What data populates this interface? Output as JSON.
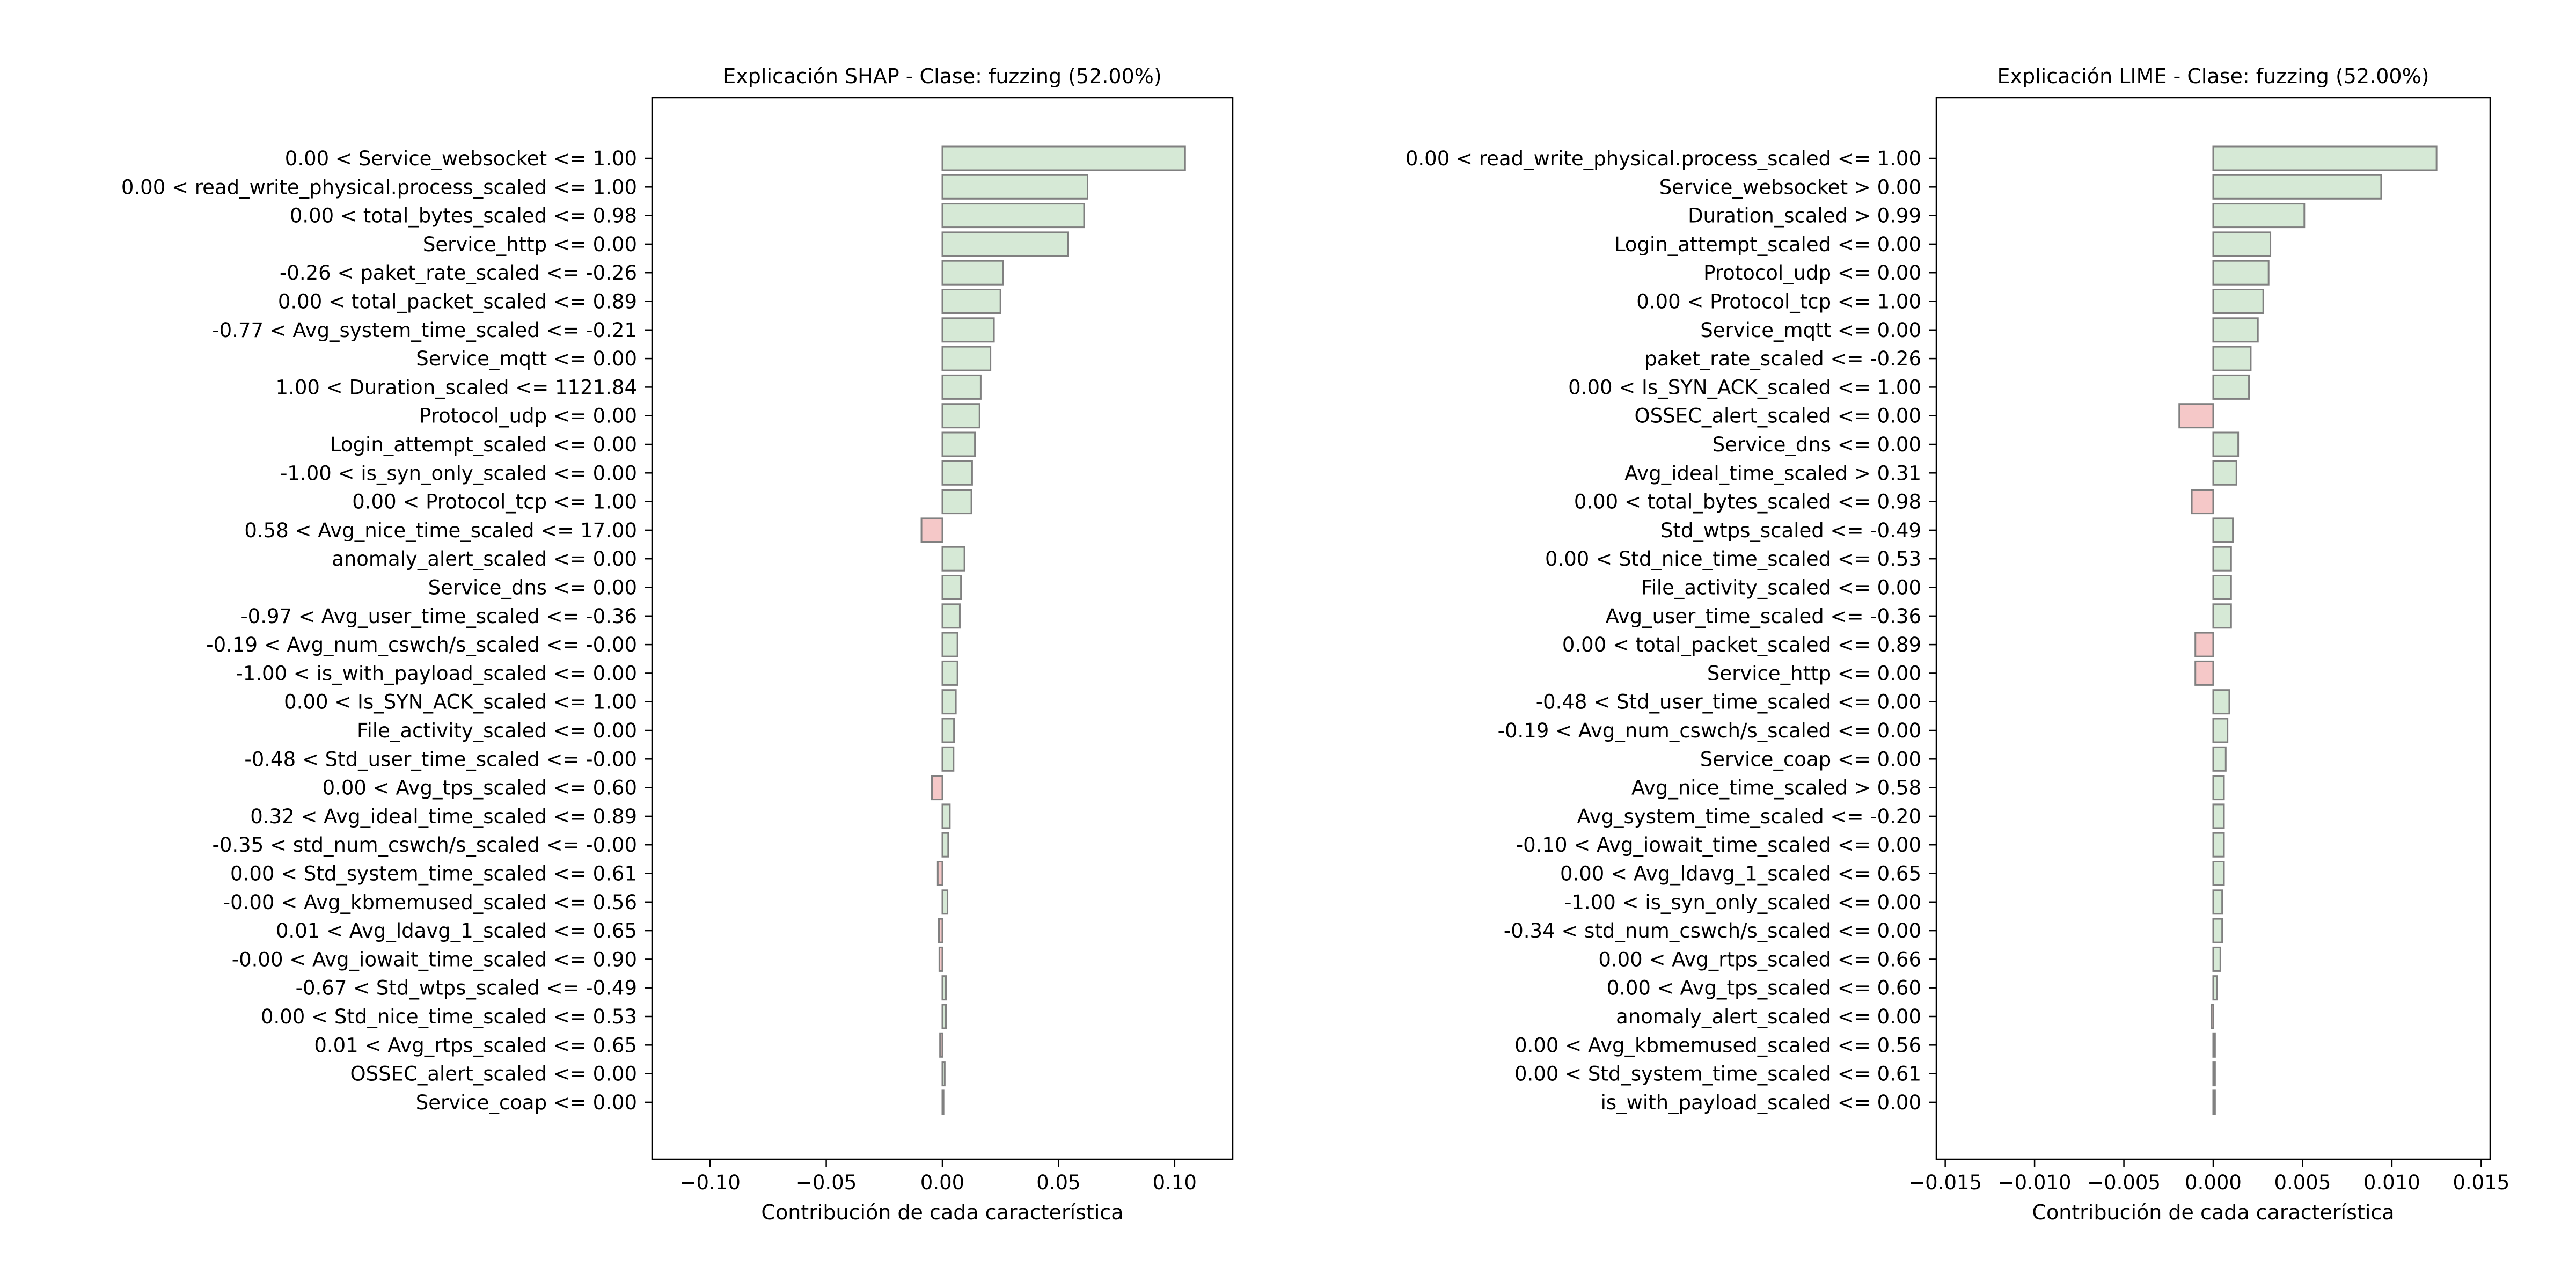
{
  "colors": {
    "positive": "#d6e9d6",
    "negative": "#f5c8c8",
    "bar_edge": "#808080",
    "axis": "#000000"
  },
  "chart_data": [
    {
      "type": "bar",
      "orientation": "horizontal",
      "title": "Explicación SHAP - Clase: fuzzing (52.00%)",
      "xlabel": "Contribución de cada característica",
      "ylabel": "",
      "xlim": [
        -0.125,
        0.125
      ],
      "xticks": [
        -0.1,
        -0.05,
        0.0,
        0.05,
        0.1
      ],
      "xtick_labels": [
        "−0.10",
        "−0.05",
        "0.00",
        "0.05",
        "0.10"
      ],
      "grid": false,
      "categories": [
        "0.00 < Service_websocket <= 1.00",
        "0.00 < read_write_physical.process_scaled <= 1.00",
        "0.00 < total_bytes_scaled <= 0.98",
        "Service_http <= 0.00",
        "-0.26 < paket_rate_scaled <= -0.26",
        "0.00 < total_packet_scaled <= 0.89",
        "-0.77 < Avg_system_time_scaled <= -0.21",
        "Service_mqtt <= 0.00",
        "1.00 < Duration_scaled <= 1121.84",
        "Protocol_udp <= 0.00",
        "Login_attempt_scaled <= 0.00",
        "-1.00 < is_syn_only_scaled <= 0.00",
        "0.00 < Protocol_tcp <= 1.00",
        "0.58 < Avg_nice_time_scaled <= 17.00",
        "anomaly_alert_scaled <= 0.00",
        "Service_dns <= 0.00",
        "-0.97 < Avg_user_time_scaled <= -0.36",
        "-0.19 < Avg_num_cswch/s_scaled <= -0.00",
        "-1.00 < is_with_payload_scaled <= 0.00",
        "0.00 < Is_SYN_ACK_scaled <= 1.00",
        "File_activity_scaled <= 0.00",
        "-0.48 < Std_user_time_scaled <= -0.00",
        "0.00 < Avg_tps_scaled <= 0.60",
        "0.32 < Avg_ideal_time_scaled <= 0.89",
        "-0.35 < std_num_cswch/s_scaled <= -0.00",
        "0.00 < Std_system_time_scaled <= 0.61",
        "-0.00 < Avg_kbmemused_scaled <= 0.56",
        "0.01 < Avg_ldavg_1_scaled <= 0.65",
        "-0.00 < Avg_iowait_time_scaled <= 0.90",
        "-0.67 < Std_wtps_scaled <= -0.49",
        "0.00 < Std_nice_time_scaled <= 0.53",
        "0.01 < Avg_rtps_scaled <= 0.65",
        "OSSEC_alert_scaled <= 0.00",
        "Service_coap <= 0.00"
      ],
      "values": [
        0.1045,
        0.0625,
        0.061,
        0.054,
        0.0262,
        0.025,
        0.0222,
        0.0207,
        0.0165,
        0.016,
        0.014,
        0.0128,
        0.0125,
        -0.009,
        0.0095,
        0.008,
        0.0075,
        0.0065,
        0.0065,
        0.0058,
        0.005,
        0.0048,
        -0.0045,
        0.0032,
        0.0025,
        -0.002,
        0.0022,
        -0.0015,
        -0.0013,
        0.0015,
        0.0015,
        -0.001,
        0.001,
        0.0005
      ]
    },
    {
      "type": "bar",
      "orientation": "horizontal",
      "title": "Explicación LIME - Clase: fuzzing (52.00%)",
      "xlabel": "Contribución de cada característica",
      "ylabel": "",
      "xlim": [
        -0.0155,
        0.0155
      ],
      "xticks": [
        -0.015,
        -0.01,
        -0.005,
        0.0,
        0.005,
        0.01,
        0.015
      ],
      "xtick_labels": [
        "−0.015",
        "−0.010",
        "−0.005",
        "0.000",
        "0.005",
        "0.010",
        "0.015"
      ],
      "grid": false,
      "categories": [
        "0.00 < read_write_physical.process_scaled <= 1.00",
        "Service_websocket > 0.00",
        "Duration_scaled > 0.99",
        "Login_attempt_scaled <= 0.00",
        "Protocol_udp <= 0.00",
        "0.00 < Protocol_tcp <= 1.00",
        "Service_mqtt <= 0.00",
        "paket_rate_scaled <= -0.26",
        "0.00 < Is_SYN_ACK_scaled <= 1.00",
        "OSSEC_alert_scaled <= 0.00",
        "Service_dns <= 0.00",
        "Avg_ideal_time_scaled > 0.31",
        "0.00 < total_bytes_scaled <= 0.98",
        "Std_wtps_scaled <= -0.49",
        "0.00 < Std_nice_time_scaled <= 0.53",
        "File_activity_scaled <= 0.00",
        "Avg_user_time_scaled <= -0.36",
        "0.00 < total_packet_scaled <= 0.89",
        "Service_http <= 0.00",
        "-0.48 < Std_user_time_scaled <= 0.00",
        "-0.19 < Avg_num_cswch/s_scaled <= 0.00",
        "Service_coap <= 0.00",
        "Avg_nice_time_scaled > 0.58",
        "Avg_system_time_scaled <= -0.20",
        "-0.10 < Avg_iowait_time_scaled <= 0.00",
        "0.00 < Avg_ldavg_1_scaled <= 0.65",
        "-1.00 < is_syn_only_scaled <= 0.00",
        "-0.34 < std_num_cswch/s_scaled <= 0.00",
        "0.00 < Avg_rtps_scaled <= 0.66",
        "0.00 < Avg_tps_scaled <= 0.60",
        "anomaly_alert_scaled <= 0.00",
        "0.00 < Avg_kbmemused_scaled <= 0.56",
        "0.00 < Std_system_time_scaled <= 0.61",
        "is_with_payload_scaled <= 0.00"
      ],
      "values": [
        0.0125,
        0.0094,
        0.0051,
        0.0032,
        0.0031,
        0.0028,
        0.0025,
        0.0021,
        0.002,
        -0.0019,
        0.0014,
        0.0013,
        -0.0012,
        0.0011,
        0.001,
        0.001,
        0.001,
        -0.001,
        -0.001,
        0.0009,
        0.0008,
        0.0007,
        0.0006,
        0.0006,
        0.0006,
        0.0006,
        0.0005,
        0.0005,
        0.0004,
        0.0002,
        -0.0001,
        0.0001,
        0.0001,
        0.0001
      ]
    }
  ]
}
